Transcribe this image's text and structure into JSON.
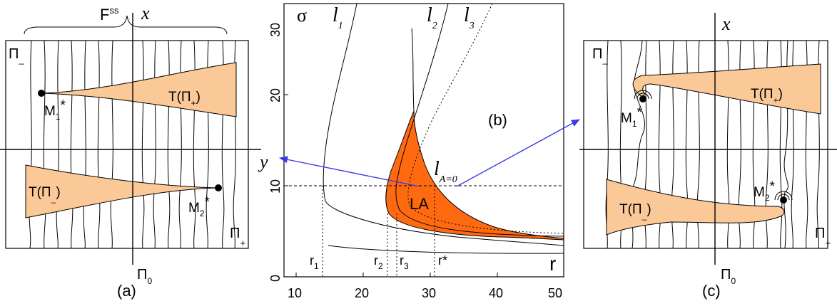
{
  "panel_a": {
    "caption": "(a)",
    "brace_label": "F",
    "brace_sup": "ss",
    "x_axis": "x",
    "y_axis": "y",
    "pi_minus": "Π",
    "pi_minus_sub": "_",
    "pi_plus": "Π",
    "pi_plus_sub": "+",
    "pi_zero": "Π",
    "pi_zero_sub": "0",
    "m1": "M",
    "m1_sub": "1",
    "m1_star": "*",
    "m2": "M",
    "m2_sub": "2",
    "m2_star": "*",
    "t_plus": "T(Π",
    "t_plus_sub": "+",
    "t_plus_close": ")",
    "t_minus": "T(Π",
    "t_minus_sub": "_",
    "t_minus_close": ")"
  },
  "panel_b": {
    "caption": "(b)",
    "sigma": "σ",
    "r_label": "r",
    "l1": "l",
    "l1_sub": "1",
    "l2": "l",
    "l2_sub": "2",
    "l3": "l",
    "l3_sub": "3",
    "la0": "l",
    "la0_sub": "A=0",
    "la": "LA",
    "r1": "r",
    "r1_sub": "1",
    "r2": "r",
    "r2_sub": "2",
    "r3": "r",
    "r3_sub": "3",
    "rstar": "r*",
    "y_ticks": [
      "0",
      "10",
      "20",
      "30"
    ],
    "x_ticks": [
      "10",
      "20",
      "30",
      "40",
      "50"
    ]
  },
  "panel_c": {
    "caption": "(c)",
    "x_axis": "x",
    "pi_minus": "Π",
    "pi_minus_sub": "_",
    "pi_plus": "Π",
    "pi_plus_sub": "+",
    "pi_zero": "Π",
    "pi_zero_sub": "0",
    "m1": "M",
    "m1_sub": "1",
    "m1_star": "*",
    "m2": "M",
    "m2_sub": "2",
    "m2_star": "*",
    "t_plus": "T(Π",
    "t_plus_sub": "+",
    "t_plus_close": ")",
    "t_minus": "T(Π",
    "t_minus_sub": "_",
    "t_minus_close": ")"
  },
  "colors": {
    "peach": "#fbc898",
    "orange": "#ff6a10",
    "arrow": "#3a3ae8"
  }
}
